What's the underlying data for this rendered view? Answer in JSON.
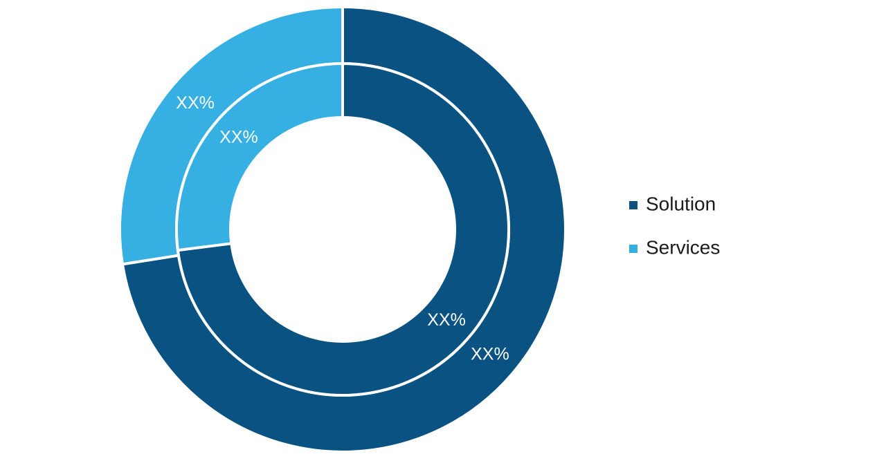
{
  "chart_data": {
    "type": "donut",
    "categories": [
      "Solution",
      "Services"
    ],
    "colors": [
      "#0a5282",
      "#36b0e3"
    ],
    "rings": [
      {
        "values": [
          72.5,
          27.5
        ],
        "value_labels": [
          "XX%",
          "XX%"
        ]
      },
      {
        "values": [
          73,
          27
        ],
        "value_labels": [
          "XX%",
          "XX%"
        ]
      }
    ],
    "legend": "right"
  }
}
